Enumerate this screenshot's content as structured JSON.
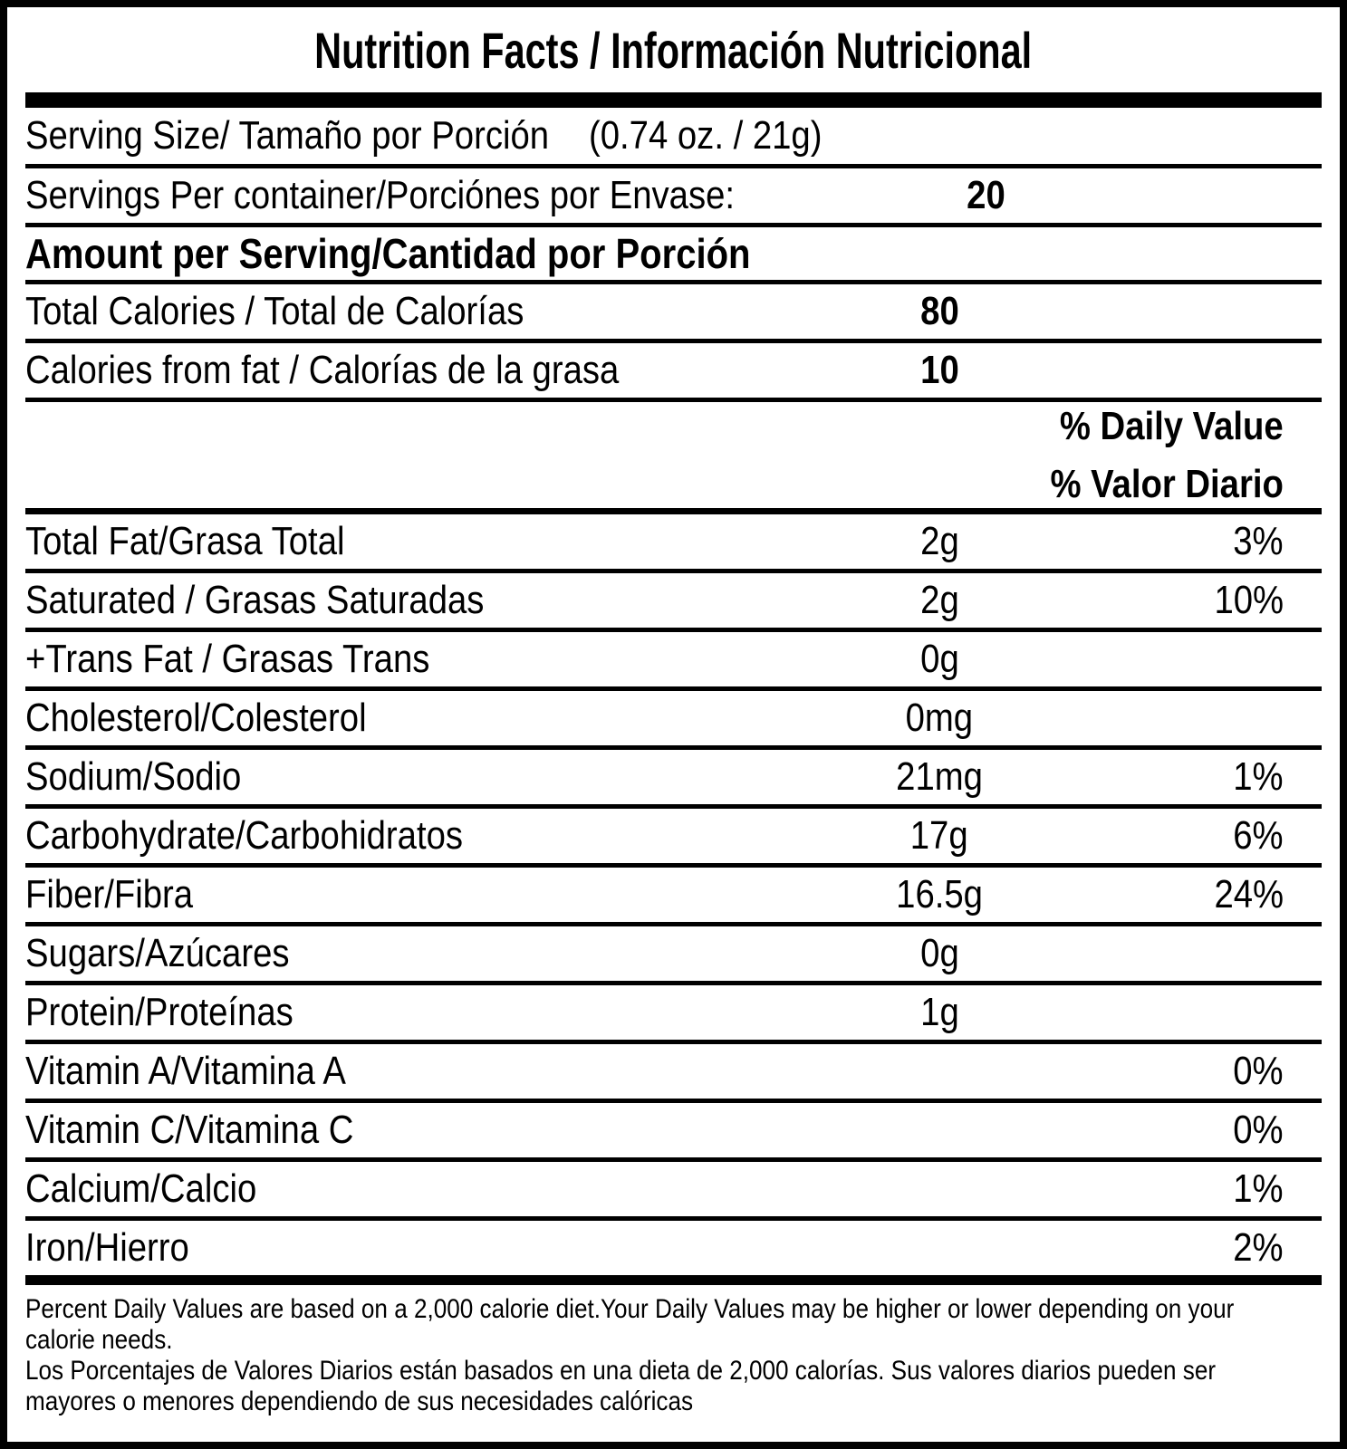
{
  "title": "Nutrition Facts / Información Nutricional",
  "serving": {
    "label": "Serving Size/ Tamaño por Porción",
    "value": "(0.74 oz. / 21g)"
  },
  "servings_per_container": {
    "label": "Servings Per container/Porciónes por Envase:",
    "value": "20"
  },
  "amount_header": "Amount per Serving/Cantidad por Porción",
  "total_calories": {
    "label": "Total Calories / Total de Calorías",
    "value": "80"
  },
  "calories_from_fat": {
    "label": "Calories from fat / Calorías de la grasa",
    "value": "10"
  },
  "daily_value_header": {
    "en": "% Daily Value",
    "es": "% Valor Diario"
  },
  "nutrients": [
    {
      "label": "Total Fat/Grasa Total",
      "value": "2g",
      "percent": "3%"
    },
    {
      "label": "Saturated / Grasas Saturadas",
      "value": "2g",
      "percent": "10%"
    },
    {
      "label": "+Trans Fat / Grasas Trans",
      "value": "0g",
      "percent": ""
    },
    {
      "label": "Cholesterol/Colesterol",
      "value": "0mg",
      "percent": ""
    },
    {
      "label": "Sodium/Sodio",
      "value": "21mg",
      "percent": "1%"
    },
    {
      "label": "Carbohydrate/Carbohidratos",
      "value": "17g",
      "percent": "6%"
    },
    {
      "label": "Fiber/Fibra",
      "value": "16.5g",
      "percent": "24%"
    },
    {
      "label": "Sugars/Azúcares",
      "value": "0g",
      "percent": ""
    },
    {
      "label": "Protein/Proteínas",
      "value": "1g",
      "percent": ""
    },
    {
      "label": "Vitamin A/Vitamina A",
      "value": "",
      "percent": "0%"
    },
    {
      "label": "Vitamin C/Vitamina C",
      "value": "",
      "percent": "0%"
    },
    {
      "label": "Calcium/Calcio",
      "value": "",
      "percent": "1%"
    },
    {
      "label": "Iron/Hierro",
      "value": "",
      "percent": "2%"
    }
  ],
  "footnote": {
    "lines": [
      "Percent Daily Values are based on a 2,000 calorie diet.Your Daily Values may be higher or lower depending on your",
      "calorie needs.",
      "Los Porcentajes de Valores Diarios están basados en una dieta de 2,000 calorías. Sus valores diarios pueden ser",
      "mayores o menores dependiendo de sus necesidades calóricas"
    ]
  },
  "colors": {
    "ink": "#000000",
    "paper": "#ffffff"
  }
}
